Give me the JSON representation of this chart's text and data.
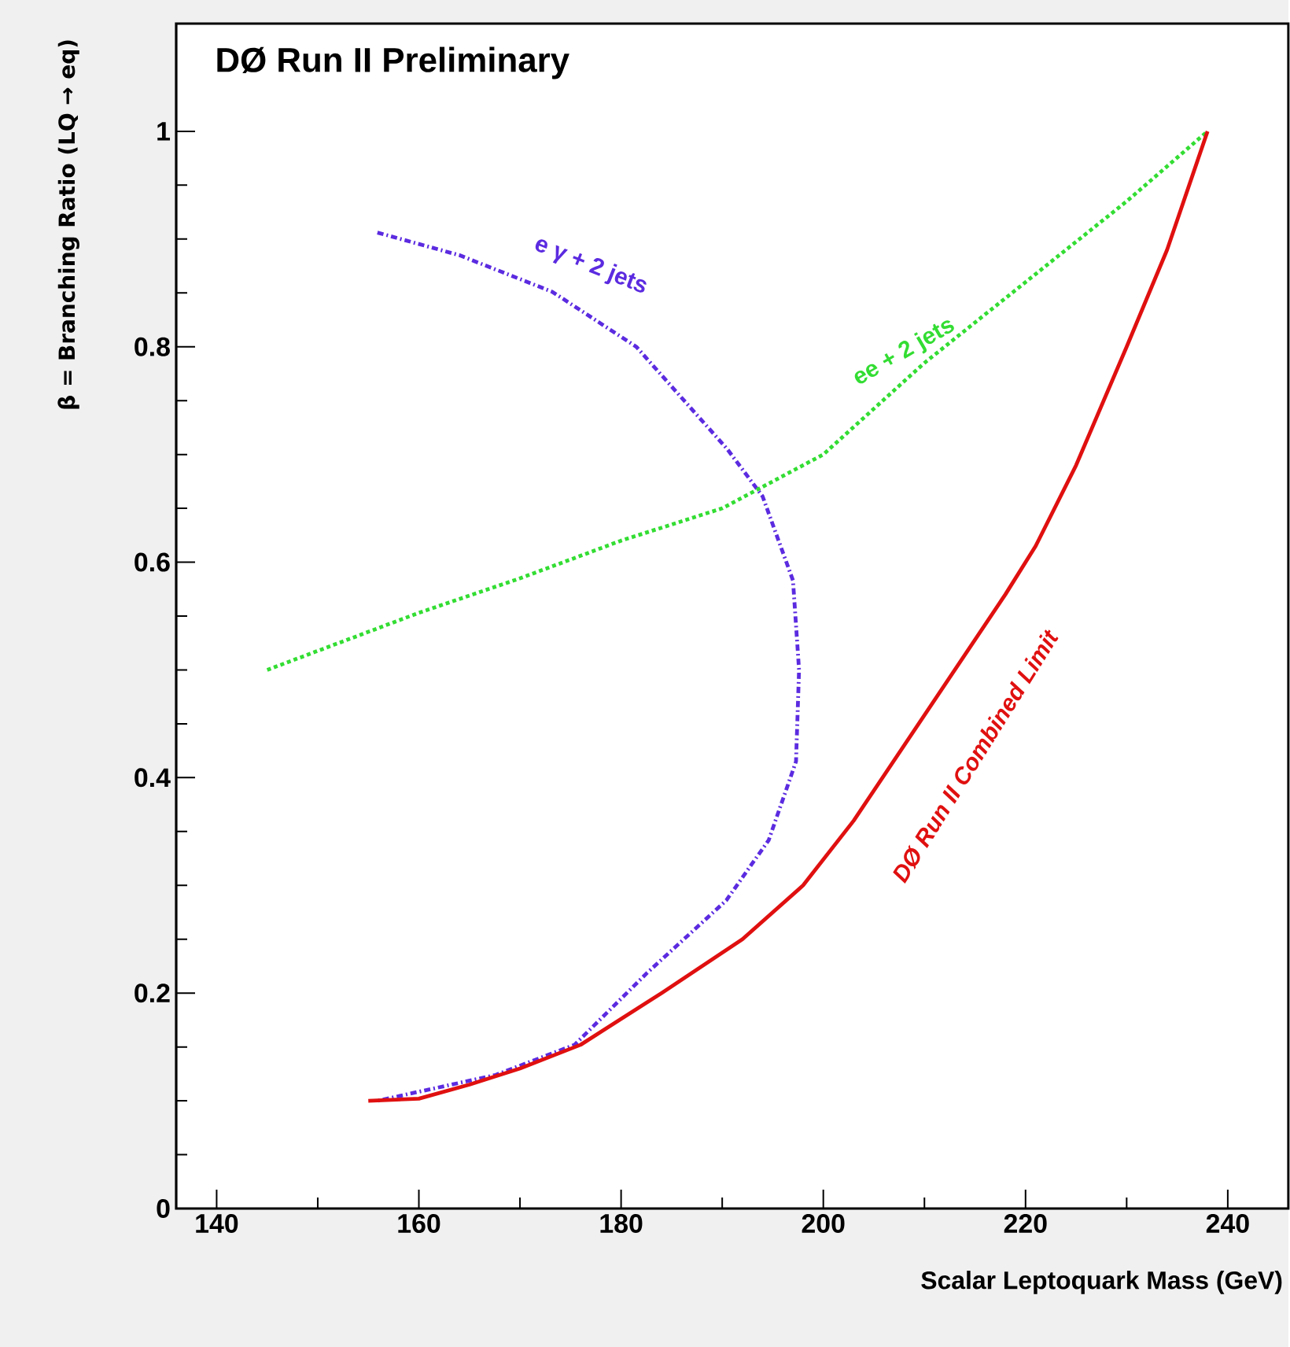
{
  "chart_data": {
    "type": "line",
    "title": "DØ Run II Preliminary",
    "xlabel": "Scalar Leptoquark Mass  (GeV)",
    "ylabel": "β = Branching Ratio (LQ  → eq)",
    "xlim": [
      136,
      246
    ],
    "ylim": [
      0,
      1.1
    ],
    "xticks": [
      140,
      160,
      180,
      200,
      220,
      240
    ],
    "yticks": [
      0,
      0.2,
      0.4,
      0.6,
      0.8,
      1
    ],
    "grid": false,
    "marker": "none",
    "series": [
      {
        "name": "e γ + 2 jets",
        "color": "#5b2be0",
        "line_style": "dashdot",
        "x": [
          155.9,
          164,
          173.2,
          181.5,
          190.5,
          194,
          197,
          197.6,
          197.3,
          194.6,
          190.4,
          182.6,
          175.4,
          167.6,
          155.9
        ],
        "values": [
          0.906,
          0.885,
          0.851,
          0.8,
          0.705,
          0.661,
          0.583,
          0.5,
          0.415,
          0.342,
          0.286,
          0.219,
          0.152,
          0.124,
          0.1
        ]
      },
      {
        "name": "ee + 2 jets",
        "color": "#33dd33",
        "line_style": "dotted",
        "x": [
          145,
          160,
          170,
          180,
          190,
          200,
          210,
          220,
          230,
          238
        ],
        "values": [
          0.5,
          0.553,
          0.585,
          0.62,
          0.65,
          0.7,
          0.785,
          0.86,
          0.935,
          1.0
        ]
      },
      {
        "name": "DØ Run II Combined Limit",
        "color": "#e01010",
        "line_style": "solid",
        "x": [
          155,
          160,
          165,
          170,
          176,
          184,
          192,
          198,
          203,
          208,
          213,
          218,
          221,
          225,
          230,
          234,
          238
        ],
        "values": [
          0.1,
          0.102,
          0.115,
          0.13,
          0.152,
          0.2,
          0.25,
          0.3,
          0.36,
          0.43,
          0.5,
          0.57,
          0.615,
          0.69,
          0.8,
          0.89,
          1.0
        ]
      }
    ]
  }
}
